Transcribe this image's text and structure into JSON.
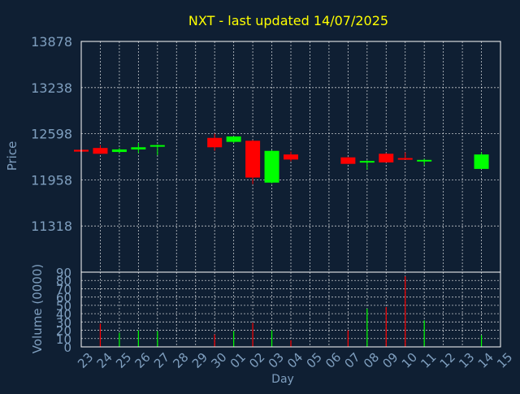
{
  "colors": {
    "background": "#0f1f33",
    "title": "#ffff00",
    "axis_text": "#7f9fbf",
    "frame": "#ffffff",
    "grid": "#ffffff",
    "up": "#00ff00",
    "down": "#ff0000"
  },
  "chart_data": [
    {
      "type": "candlestick",
      "title": "NXT - last updated 14/07/2025",
      "ylabel": "Price",
      "ylim": [
        10678,
        13878
      ],
      "yticks": [
        13878,
        13238,
        12598,
        11958,
        11318
      ],
      "grid": true,
      "x": [
        "23",
        "24",
        "25",
        "26",
        "27",
        "28",
        "29",
        "30",
        "01",
        "02",
        "03",
        "04",
        "05",
        "06",
        "07",
        "08",
        "09",
        "10",
        "11",
        "12",
        "13",
        "14",
        "15"
      ],
      "candles": [
        {
          "x": "23",
          "open": 12375,
          "high": 12395,
          "low": 12345,
          "close": 12350
        },
        {
          "x": "24",
          "open": 12400,
          "high": 12440,
          "low": 12320,
          "close": 12320
        },
        {
          "x": "25",
          "open": 12345,
          "high": 12400,
          "low": 12330,
          "close": 12380
        },
        {
          "x": "26",
          "open": 12380,
          "high": 12470,
          "low": 12330,
          "close": 12410
        },
        {
          "x": "27",
          "open": 12430,
          "high": 12450,
          "low": 12300,
          "close": 12440
        },
        {
          "x": "30",
          "open": 12540,
          "high": 12600,
          "low": 12360,
          "close": 12410
        },
        {
          "x": "01",
          "open": 12485,
          "high": 12560,
          "low": 12470,
          "close": 12560
        },
        {
          "x": "02",
          "open": 12500,
          "high": 12510,
          "low": 11900,
          "close": 11990
        },
        {
          "x": "03",
          "open": 11920,
          "high": 12370,
          "low": 11910,
          "close": 12360
        },
        {
          "x": "04",
          "open": 12310,
          "high": 12350,
          "low": 12215,
          "close": 12240
        },
        {
          "x": "07",
          "open": 12270,
          "high": 12275,
          "low": 12180,
          "close": 12180
        },
        {
          "x": "08",
          "open": 12200,
          "high": 12230,
          "low": 12100,
          "close": 12220
        },
        {
          "x": "09",
          "open": 12320,
          "high": 12330,
          "low": 12200,
          "close": 12200
        },
        {
          "x": "10",
          "open": 12260,
          "high": 12340,
          "low": 12240,
          "close": 12245
        },
        {
          "x": "11",
          "open": 12230,
          "high": 12250,
          "low": 12160,
          "close": 12235
        },
        {
          "x": "14",
          "open": 12110,
          "high": 12340,
          "low": 12110,
          "close": 12310
        }
      ]
    },
    {
      "type": "bar",
      "ylabel": "Volume (0000)",
      "xlabel": "Day",
      "ylim": [
        0,
        90
      ],
      "yticks": [
        0,
        10,
        20,
        30,
        40,
        50,
        60,
        70,
        80,
        90
      ],
      "grid": true,
      "categories": [
        "24",
        "25",
        "26",
        "27",
        "30",
        "01",
        "02",
        "03",
        "04",
        "07",
        "08",
        "09",
        "10",
        "11",
        "14"
      ],
      "values": [
        28,
        17,
        20,
        19,
        15,
        19,
        29,
        20,
        8,
        20,
        46,
        48,
        85,
        32,
        14
      ],
      "direction": [
        "down",
        "up",
        "up",
        "up",
        "down",
        "up",
        "down",
        "up",
        "down",
        "down",
        "up",
        "down",
        "down",
        "up",
        "up"
      ]
    }
  ]
}
